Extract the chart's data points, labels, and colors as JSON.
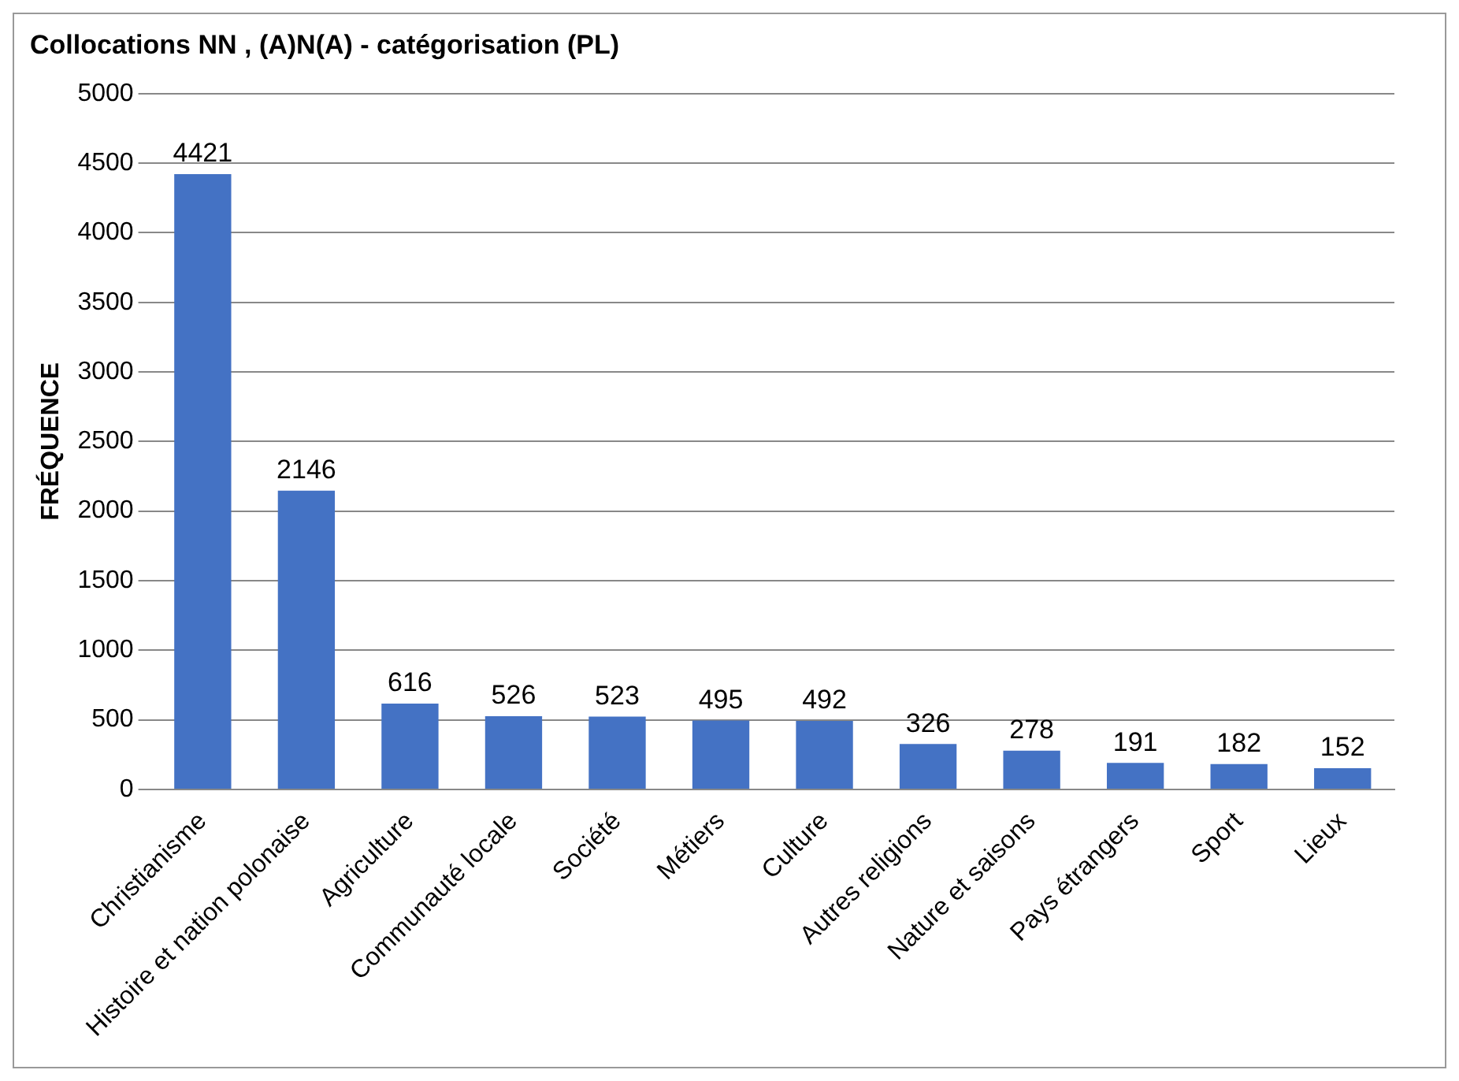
{
  "chart_data": {
    "type": "bar",
    "title": "Collocations NN , (A)N(A) - catégorisation (PL)",
    "ylabel": "FRÉQUENCE",
    "categories": [
      "Christianisme",
      "Histoire et nation polonaise",
      "Agriculture",
      "Communauté locale",
      "Société",
      "Métiers",
      "Culture",
      "Autres religions",
      "Nature et saisons",
      "Pays étrangers",
      "Sport",
      "Lieux"
    ],
    "values": [
      4421,
      2146,
      616,
      526,
      523,
      495,
      492,
      326,
      278,
      191,
      182,
      152
    ],
    "color": "#4472c4",
    "ylim": [
      0,
      5000
    ],
    "yticks": [
      0,
      500,
      1000,
      1500,
      2000,
      2500,
      3000,
      3500,
      4000,
      4500,
      5000
    ],
    "grid": "y",
    "data_labels": true,
    "legend": false
  }
}
